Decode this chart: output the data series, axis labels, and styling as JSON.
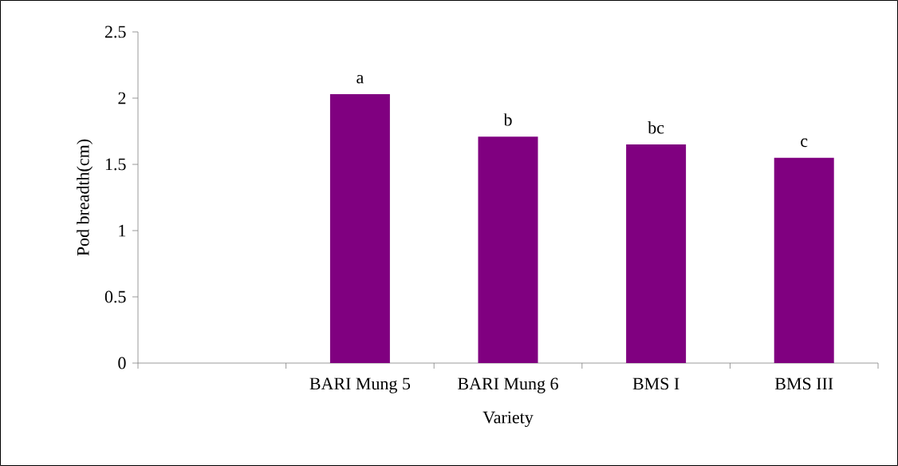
{
  "chart_data": {
    "type": "bar",
    "xlabel": "Variety",
    "ylabel": "Pod breadth(cm)",
    "categories": [
      null,
      "BARI Mung 5",
      "BARI Mung 6",
      "BMS I",
      "BMS III"
    ],
    "values": [
      null,
      2.03,
      1.71,
      1.65,
      1.55
    ],
    "value_labels": [
      null,
      "a",
      "b",
      "bc",
      "c"
    ],
    "color": "#800080",
    "ylim": [
      0,
      2.5
    ],
    "yticks": [
      0,
      0.5,
      1,
      1.5,
      2,
      2.5
    ],
    "grid": false
  }
}
